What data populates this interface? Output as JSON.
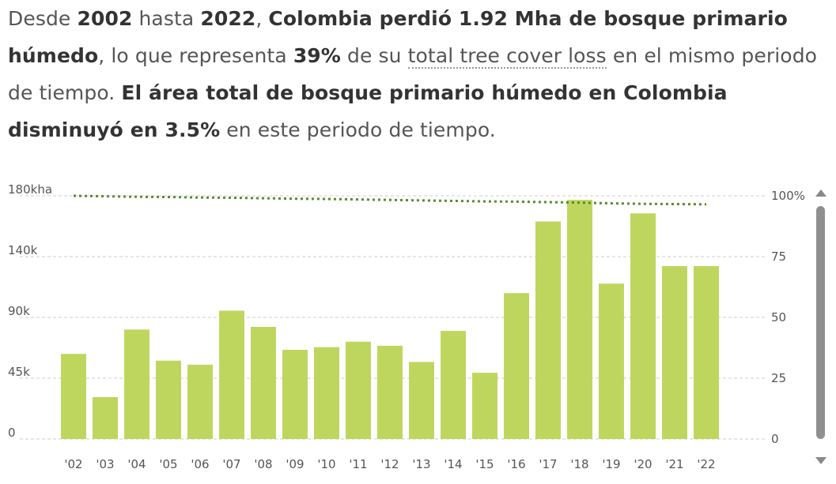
{
  "summary": {
    "p1": "Desde ",
    "year_start": "2002",
    "p2": " hasta ",
    "year_end": "2022",
    "p3": ", ",
    "loss_stmt": "Colombia perdió 1.92 Mha de bosque primario húmedo",
    "p4": ", lo que representa ",
    "percent": "39%",
    "p5": " de su ",
    "link_text": "total tree cover loss",
    "p6": " en el mismo periodo de tiempo. ",
    "decrease_stmt": "El área total de bosque primario húmedo en Colombia disminuyó en 3.5%",
    "p7": " en este periodo de tiempo."
  },
  "chart_data": {
    "type": "bar",
    "categories": [
      "'02",
      "'03",
      "'04",
      "'05",
      "'06",
      "'07",
      "'08",
      "'09",
      "'10",
      "'11",
      "'12",
      "'13",
      "'14",
      "'15",
      "'16",
      "'17",
      "'18",
      "'19",
      "'20",
      "'21",
      "'22"
    ],
    "series": [
      {
        "values": [
          63000,
          31000,
          81000,
          58000,
          55000,
          95000,
          83000,
          66000,
          68000,
          72000,
          69000,
          57000,
          80000,
          49000,
          108000,
          161000,
          177000,
          115000,
          167000,
          128000,
          128000
        ],
        "color": "#bfd65e"
      },
      {
        "axis": "right",
        "style": "dotted-line",
        "values": [
          100,
          99.8,
          99.6,
          99.5,
          99.3,
          99.2,
          99.0,
          98.8,
          98.7,
          98.5,
          98.3,
          98.1,
          97.9,
          97.7,
          97.6,
          97.4,
          97.2,
          96.9,
          96.7,
          96.6,
          96.5
        ],
        "color": "#5a8a2e"
      }
    ],
    "y_left": {
      "ticks": [
        "0",
        "45k",
        "90k",
        "140k",
        "180kha"
      ],
      "tick_values": [
        0,
        45000,
        90000,
        135000,
        180000
      ],
      "ylim": [
        0,
        180000
      ]
    },
    "y_right": {
      "ticks": [
        "0",
        "25",
        "50",
        "75",
        "100%"
      ],
      "tick_values": [
        0,
        25,
        50,
        75,
        100
      ],
      "ylim": [
        0,
        100
      ]
    },
    "grid": true,
    "grid_style": "dashed"
  }
}
